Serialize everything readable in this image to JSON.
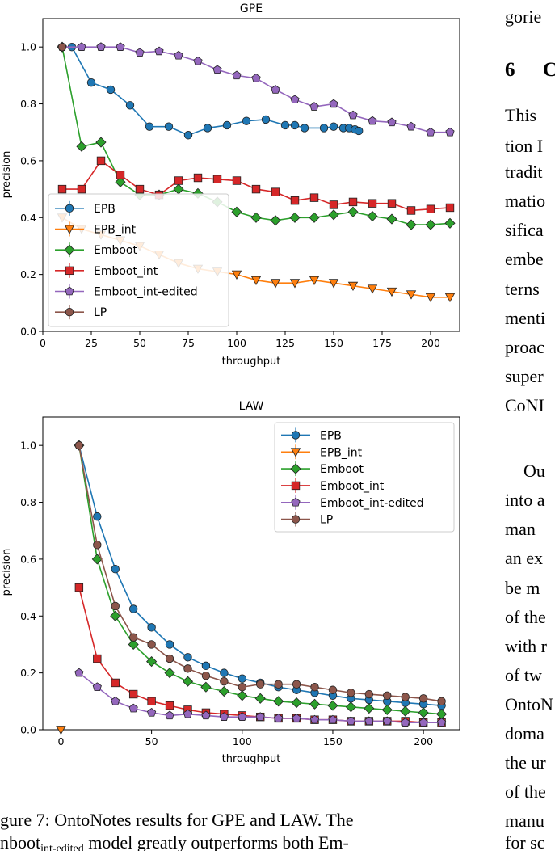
{
  "chart_data": [
    {
      "type": "line",
      "title": "GPE",
      "xlabel": "throughput",
      "ylabel": "precision",
      "xlim": [
        0,
        215
      ],
      "ylim": [
        0,
        1.1
      ],
      "xticks": [
        0,
        25,
        50,
        75,
        100,
        125,
        150,
        175,
        200
      ],
      "yticks": [
        0.0,
        0.2,
        0.4,
        0.6,
        0.8,
        1.0
      ],
      "xtick_labels": [
        "0",
        "25",
        "50",
        "75",
        "100",
        "125",
        "150",
        "175",
        "200"
      ],
      "ytick_labels": [
        "0.0",
        "0.2",
        "0.4",
        "0.6",
        "0.8",
        "1.0"
      ],
      "legend_position": "lower-left",
      "series": [
        {
          "name": "EPB",
          "color": "#1f77b4",
          "marker": "circle",
          "x": [
            10,
            15,
            25,
            35,
            45,
            55,
            65,
            75,
            85,
            95,
            105,
            115,
            125,
            130,
            135,
            145,
            150,
            155,
            158,
            161,
            163
          ],
          "y": [
            1.0,
            1.0,
            0.875,
            0.85,
            0.795,
            0.72,
            0.72,
            0.69,
            0.715,
            0.725,
            0.74,
            0.745,
            0.725,
            0.725,
            0.715,
            0.715,
            0.72,
            0.715,
            0.715,
            0.71,
            0.705
          ]
        },
        {
          "name": "EPB_int",
          "color": "#ff7f0e",
          "marker": "triangle-down",
          "x": [
            10,
            20,
            30,
            40,
            50,
            60,
            70,
            80,
            90,
            100,
            110,
            120,
            130,
            140,
            150,
            160,
            170,
            180,
            190,
            200,
            210
          ],
          "y": [
            0.4,
            0.36,
            0.34,
            0.32,
            0.3,
            0.27,
            0.24,
            0.22,
            0.21,
            0.2,
            0.18,
            0.17,
            0.17,
            0.18,
            0.17,
            0.16,
            0.15,
            0.14,
            0.13,
            0.12,
            0.12
          ]
        },
        {
          "name": "Emboot",
          "color": "#2ca02c",
          "marker": "diamond",
          "x": [
            10,
            20,
            30,
            40,
            50,
            60,
            70,
            80,
            90,
            100,
            110,
            120,
            130,
            140,
            150,
            160,
            170,
            180,
            190,
            200,
            210
          ],
          "y": [
            1.0,
            0.65,
            0.665,
            0.525,
            0.48,
            0.48,
            0.5,
            0.485,
            0.455,
            0.42,
            0.4,
            0.39,
            0.4,
            0.4,
            0.41,
            0.42,
            0.405,
            0.395,
            0.375,
            0.375,
            0.38
          ]
        },
        {
          "name": "Emboot_int",
          "color": "#d62728",
          "marker": "square",
          "x": [
            10,
            20,
            30,
            40,
            50,
            60,
            70,
            80,
            90,
            100,
            110,
            120,
            130,
            140,
            150,
            160,
            170,
            180,
            190,
            200,
            210
          ],
          "y": [
            0.5,
            0.5,
            0.6,
            0.55,
            0.5,
            0.48,
            0.53,
            0.54,
            0.535,
            0.53,
            0.5,
            0.49,
            0.46,
            0.47,
            0.445,
            0.455,
            0.45,
            0.45,
            0.425,
            0.43,
            0.435
          ]
        },
        {
          "name": "Emboot_int-edited",
          "color": "#9467bd",
          "marker": "pentagon",
          "x": [
            10,
            20,
            30,
            40,
            50,
            60,
            70,
            80,
            90,
            100,
            110,
            120,
            130,
            140,
            150,
            160,
            170,
            180,
            190,
            200,
            210
          ],
          "y": [
            1.0,
            1.0,
            1.0,
            1.0,
            0.98,
            0.985,
            0.97,
            0.95,
            0.92,
            0.9,
            0.89,
            0.85,
            0.815,
            0.79,
            0.8,
            0.76,
            0.74,
            0.735,
            0.72,
            0.7,
            0.7
          ]
        },
        {
          "name": "LP",
          "color": "#8c564b",
          "marker": "circle",
          "x": [
            10
          ],
          "y": [
            1.0
          ]
        }
      ]
    },
    {
      "type": "line",
      "title": "LAW",
      "xlabel": "throughput",
      "ylabel": "precision",
      "xlim": [
        -10,
        220
      ],
      "ylim": [
        0,
        1.1
      ],
      "xticks": [
        0,
        50,
        100,
        150,
        200
      ],
      "yticks": [
        0.0,
        0.2,
        0.4,
        0.6,
        0.8,
        1.0
      ],
      "xtick_labels": [
        "0",
        "50",
        "100",
        "150",
        "200"
      ],
      "ytick_labels": [
        "0.0",
        "0.2",
        "0.4",
        "0.6",
        "0.8",
        "1.0"
      ],
      "legend_position": "upper-right",
      "series": [
        {
          "name": "EPB",
          "color": "#1f77b4",
          "marker": "circle",
          "x": [
            10,
            20,
            30,
            40,
            50,
            60,
            70,
            80,
            90,
            100,
            110,
            120,
            130,
            140,
            150,
            160,
            170,
            180,
            190,
            200,
            210
          ],
          "y": [
            1.0,
            0.75,
            0.565,
            0.425,
            0.36,
            0.3,
            0.255,
            0.225,
            0.2,
            0.18,
            0.165,
            0.15,
            0.14,
            0.13,
            0.12,
            0.11,
            0.105,
            0.1,
            0.095,
            0.09,
            0.085
          ]
        },
        {
          "name": "EPB_int",
          "color": "#ff7f0e",
          "marker": "triangle-down",
          "x": [
            0
          ],
          "y": [
            0.0
          ]
        },
        {
          "name": "Emboot",
          "color": "#2ca02c",
          "marker": "diamond",
          "x": [
            10,
            20,
            30,
            40,
            50,
            60,
            70,
            80,
            90,
            100,
            110,
            120,
            130,
            140,
            150,
            160,
            170,
            180,
            190,
            200,
            210
          ],
          "y": [
            1.0,
            0.6,
            0.4,
            0.3,
            0.24,
            0.2,
            0.17,
            0.15,
            0.135,
            0.12,
            0.11,
            0.1,
            0.095,
            0.09,
            0.085,
            0.08,
            0.075,
            0.07,
            0.065,
            0.06,
            0.055
          ]
        },
        {
          "name": "Emboot_int",
          "color": "#d62728",
          "marker": "square",
          "x": [
            10,
            20,
            30,
            40,
            50,
            60,
            70,
            80,
            90,
            100,
            110,
            120,
            130,
            140,
            150,
            160,
            170,
            180,
            190,
            200,
            210
          ],
          "y": [
            0.5,
            0.25,
            0.165,
            0.125,
            0.1,
            0.085,
            0.07,
            0.06,
            0.055,
            0.05,
            0.045,
            0.04,
            0.04,
            0.035,
            0.035,
            0.03,
            0.03,
            0.03,
            0.03,
            0.025,
            0.025
          ]
        },
        {
          "name": "Emboot_int-edited",
          "color": "#9467bd",
          "marker": "pentagon",
          "x": [
            10,
            20,
            30,
            40,
            50,
            60,
            70,
            80,
            90,
            100,
            110,
            120,
            130,
            140,
            150,
            160,
            170,
            180,
            190,
            200,
            210
          ],
          "y": [
            0.2,
            0.15,
            0.1,
            0.075,
            0.06,
            0.05,
            0.055,
            0.05,
            0.045,
            0.045,
            0.045,
            0.04,
            0.04,
            0.035,
            0.035,
            0.03,
            0.03,
            0.03,
            0.025,
            0.025,
            0.025
          ]
        },
        {
          "name": "LP",
          "color": "#8c564b",
          "marker": "circle",
          "x": [
            10,
            20,
            30,
            40,
            50,
            60,
            70,
            80,
            90,
            100,
            110,
            120,
            130,
            140,
            150,
            160,
            170,
            180,
            190,
            200,
            210
          ],
          "y": [
            1.0,
            0.65,
            0.435,
            0.325,
            0.3,
            0.25,
            0.215,
            0.19,
            0.17,
            0.15,
            0.16,
            0.16,
            0.16,
            0.15,
            0.14,
            0.13,
            0.125,
            0.12,
            0.115,
            0.11,
            0.1
          ]
        }
      ]
    }
  ],
  "right_column": {
    "lines": [
      "gorie",
      "",
      "This",
      "tion I",
      "tradit",
      "matio",
      "sifica",
      "embe",
      "terns",
      "menti",
      "proac",
      "super",
      "CoNI",
      "Ou",
      "into a",
      "man",
      "an ex",
      "be m",
      "of the",
      "with r",
      "of tw",
      "OntoN",
      "doma",
      "the ur",
      "of the",
      "manu",
      "for sc"
    ],
    "section_number": "6",
    "section_initial": "C"
  },
  "caption": {
    "line1": "gure 7:  OntoNotes results for GPE and LAW. The",
    "line2_prefix": "nboot",
    "line2_subscript": "int-edited",
    "line2_suffix": " model greatly outperforms both Em-"
  }
}
